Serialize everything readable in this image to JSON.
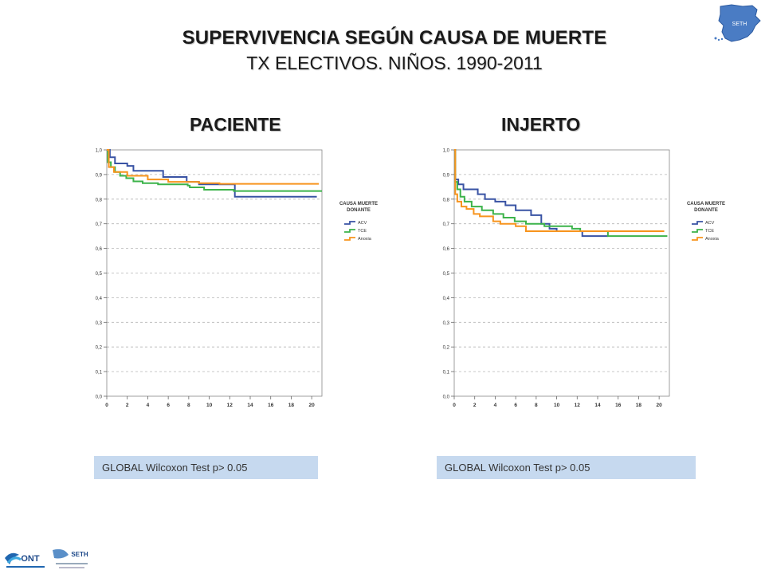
{
  "header": {
    "title": "SUPERVIVENCIA SEGÚN CAUSA DE MUERTE",
    "subtitle": "TX ELECTIVOS. NIÑOS. 1990-2011"
  },
  "badge": {
    "map_label": "SETH"
  },
  "logos": {
    "ont": "ONT",
    "seth": "SETH"
  },
  "colors": {
    "acv": "#3953a4",
    "tce": "#3cb34a",
    "anoxia": "#f7941d",
    "stat_box": "#c6d9ef"
  },
  "chart_data": [
    {
      "type": "line",
      "panel_title": "PACIENTE",
      "legend": {
        "title_line1": "CAUSA MUERTE",
        "title_line2": "DONANTE",
        "placement": "right"
      },
      "xlim": [
        0,
        21
      ],
      "xticks": [
        "0",
        "2",
        "4",
        "6",
        "8",
        "10",
        "12",
        "14",
        "16",
        "18",
        "20"
      ],
      "ylim": [
        0,
        1
      ],
      "yticks": [
        "0,0",
        "0,1",
        "0,2",
        "0,3",
        "0,4",
        "0,5",
        "0,6",
        "0,7",
        "0,8",
        "0,9",
        "1,0"
      ],
      "grid": "horizontal-dashed",
      "stat_text": "GLOBAL Wilcoxon Test p> 0.05",
      "series": [
        {
          "name": "ACV",
          "color": "#3953a4",
          "step": [
            [
              0,
              1.0
            ],
            [
              0.3,
              0.97
            ],
            [
              0.8,
              0.945
            ],
            [
              2,
              0.935
            ],
            [
              2.6,
              0.915
            ],
            [
              5.5,
              0.89
            ],
            [
              7.8,
              0.87
            ],
            [
              9,
              0.86
            ],
            [
              12.5,
              0.81
            ],
            [
              20.5,
              0.81
            ]
          ]
        },
        {
          "name": "TCE",
          "color": "#3cb34a",
          "step": [
            [
              0,
              1.0
            ],
            [
              0.1,
              0.95
            ],
            [
              0.4,
              0.93
            ],
            [
              0.8,
              0.91
            ],
            [
              1.3,
              0.895
            ],
            [
              1.9,
              0.885
            ],
            [
              2.6,
              0.872
            ],
            [
              3.5,
              0.865
            ],
            [
              5,
              0.86
            ],
            [
              7.9,
              0.855
            ],
            [
              8.1,
              0.848
            ],
            [
              9.5,
              0.838
            ],
            [
              12.4,
              0.833
            ],
            [
              21,
              0.833
            ]
          ]
        },
        {
          "name": "Anoxia",
          "color": "#f7941d",
          "step": [
            [
              0,
              1.0
            ],
            [
              0.2,
              0.93
            ],
            [
              0.7,
              0.91
            ],
            [
              2,
              0.895
            ],
            [
              4,
              0.88
            ],
            [
              6,
              0.87
            ],
            [
              9,
              0.865
            ],
            [
              11,
              0.862
            ],
            [
              20.7,
              0.862
            ]
          ]
        }
      ]
    },
    {
      "type": "line",
      "panel_title": "INJERTO",
      "legend": {
        "title_line1": "CAUSA MUERTE",
        "title_line2": "DONANTE",
        "placement": "right"
      },
      "xlim": [
        0,
        21
      ],
      "xticks": [
        "0",
        "2",
        "4",
        "6",
        "8",
        "10",
        "12",
        "14",
        "16",
        "18",
        "20"
      ],
      "ylim": [
        0,
        1
      ],
      "yticks": [
        "0,0",
        "0,1",
        "0,2",
        "0,3",
        "0,4",
        "0,5",
        "0,6",
        "0,7",
        "0,8",
        "0,9",
        "1,0"
      ],
      "grid": "horizontal-dashed",
      "stat_text": "GLOBAL Wilcoxon Test p> 0.05",
      "series": [
        {
          "name": "ACV",
          "color": "#3953a4",
          "step": [
            [
              0,
              1.0
            ],
            [
              0.1,
              0.88
            ],
            [
              0.4,
              0.86
            ],
            [
              0.9,
              0.84
            ],
            [
              2.3,
              0.82
            ],
            [
              3,
              0.8
            ],
            [
              4,
              0.79
            ],
            [
              5,
              0.775
            ],
            [
              6,
              0.755
            ],
            [
              7.5,
              0.735
            ],
            [
              8.5,
              0.7
            ],
            [
              9.3,
              0.68
            ],
            [
              10,
              0.67
            ],
            [
              12.5,
              0.65
            ],
            [
              15,
              0.65
            ]
          ]
        },
        {
          "name": "TCE",
          "color": "#3cb34a",
          "step": [
            [
              0,
              1.0
            ],
            [
              0.1,
              0.87
            ],
            [
              0.3,
              0.84
            ],
            [
              0.6,
              0.81
            ],
            [
              1,
              0.79
            ],
            [
              1.7,
              0.77
            ],
            [
              2.7,
              0.755
            ],
            [
              3.8,
              0.74
            ],
            [
              4.8,
              0.725
            ],
            [
              5.9,
              0.71
            ],
            [
              7,
              0.7
            ],
            [
              8.8,
              0.69
            ],
            [
              11.5,
              0.68
            ],
            [
              12.3,
              0.67
            ],
            [
              15,
              0.65
            ],
            [
              20.8,
              0.65
            ]
          ]
        },
        {
          "name": "Anoxia",
          "color": "#f7941d",
          "step": [
            [
              0,
              1.0
            ],
            [
              0.1,
              0.82
            ],
            [
              0.3,
              0.79
            ],
            [
              0.7,
              0.77
            ],
            [
              1.2,
              0.76
            ],
            [
              1.9,
              0.74
            ],
            [
              2.5,
              0.73
            ],
            [
              3.8,
              0.71
            ],
            [
              4.5,
              0.7
            ],
            [
              6,
              0.69
            ],
            [
              7,
              0.67
            ],
            [
              10,
              0.67
            ],
            [
              12,
              0.67
            ],
            [
              20.5,
              0.67
            ]
          ]
        }
      ]
    }
  ]
}
